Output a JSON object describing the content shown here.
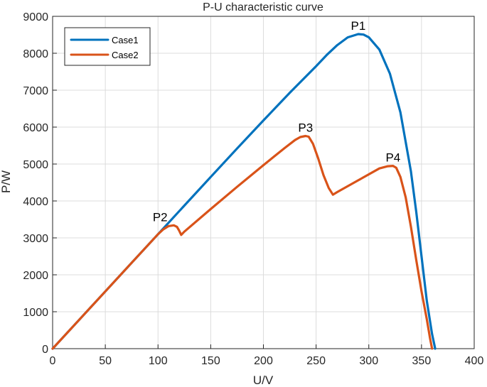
{
  "chart_data": {
    "type": "line",
    "title": "P-U characteristic curve",
    "xlabel": "U/V",
    "ylabel": "P/W",
    "xlim": [
      0,
      400
    ],
    "ylim": [
      0,
      9000
    ],
    "xticks": [
      0,
      50,
      100,
      150,
      200,
      250,
      300,
      350,
      400
    ],
    "yticks": [
      0,
      1000,
      2000,
      3000,
      4000,
      5000,
      6000,
      7000,
      8000,
      9000
    ],
    "grid": true,
    "legend_position": "top-left",
    "series": [
      {
        "name": "Case1",
        "color": "#0072BD",
        "x": [
          0,
          25,
          50,
          75,
          100,
          125,
          150,
          175,
          200,
          225,
          250,
          260,
          270,
          280,
          290,
          295,
          300,
          310,
          320,
          330,
          340,
          345,
          350,
          355,
          360,
          363
        ],
        "y": [
          0,
          775,
          1550,
          2325,
          3100,
          3875,
          4650,
          5420,
          6180,
          6930,
          7650,
          7950,
          8220,
          8430,
          8520,
          8505,
          8430,
          8100,
          7450,
          6400,
          4800,
          3700,
          2500,
          1300,
          400,
          0
        ]
      },
      {
        "name": "Case2",
        "color": "#D95319",
        "x": [
          0,
          25,
          50,
          75,
          100,
          105,
          110,
          115,
          118,
          120,
          122,
          125,
          150,
          175,
          200,
          220,
          230,
          235,
          240,
          243,
          247,
          252,
          257,
          262,
          266,
          270,
          290,
          310,
          318,
          323,
          326,
          330,
          335,
          340,
          345,
          350,
          355,
          358,
          360
        ],
        "y": [
          0,
          775,
          1550,
          2325,
          3100,
          3230,
          3320,
          3340,
          3300,
          3200,
          3080,
          3170,
          3780,
          4380,
          4970,
          5430,
          5650,
          5730,
          5760,
          5740,
          5550,
          5150,
          4700,
          4350,
          4170,
          4240,
          4560,
          4880,
          4940,
          4950,
          4900,
          4650,
          4100,
          3300,
          2400,
          1550,
          800,
          300,
          0
        ]
      }
    ],
    "annotations": [
      {
        "text": "P1",
        "x": 290,
        "y": 8520
      },
      {
        "text": "P2",
        "x": 102,
        "y": 3340
      },
      {
        "text": "P3",
        "x": 240,
        "y": 5760
      },
      {
        "text": "P4",
        "x": 323,
        "y": 4950
      }
    ]
  }
}
